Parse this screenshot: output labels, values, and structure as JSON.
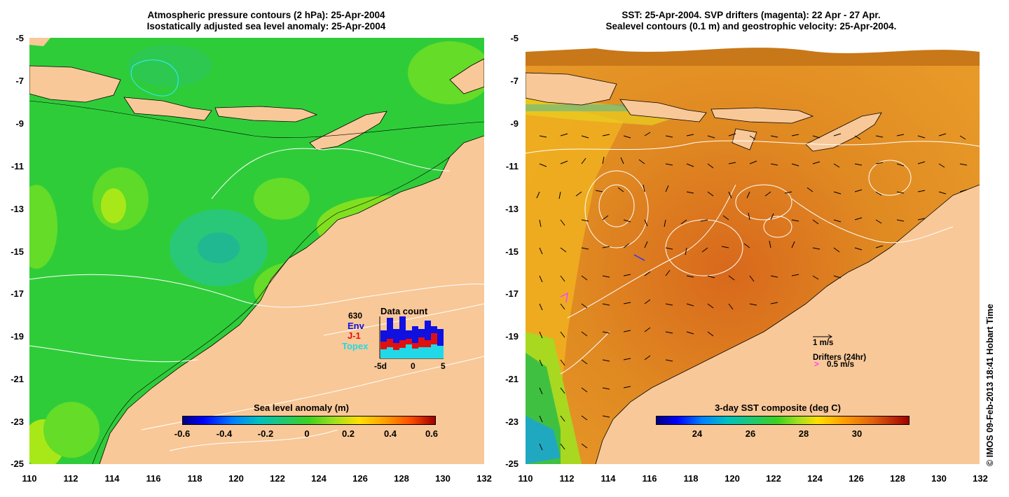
{
  "left_panel": {
    "title_line1": "Atmospheric pressure contours (2 hPa): 25-Apr-2004",
    "title_line2": "Isostatically adjusted sea level anomaly: 25-Apr-2004",
    "y_ticks": [
      "-5",
      "-7",
      "-9",
      "-11",
      "-13",
      "-15",
      "-17",
      "-19",
      "-21",
      "-23",
      "-25"
    ],
    "x_ticks": [
      "110",
      "112",
      "114",
      "116",
      "118",
      "120",
      "122",
      "124",
      "126",
      "128",
      "130",
      "132"
    ],
    "colorbar": {
      "title": "Sea level anomaly (m)",
      "labels": [
        "-0.6",
        "-0.4",
        "-0.2",
        "0",
        "0.2",
        "0.4",
        "0.6"
      ],
      "range": [
        -0.6,
        0.6
      ]
    },
    "data_count": {
      "title": "Data count",
      "total": "630",
      "legend": [
        {
          "label": "Env",
          "color": "#1010e0"
        },
        {
          "label": "J-1",
          "color": "#e01010"
        },
        {
          "label": "Topex",
          "color": "#20d8e8"
        }
      ],
      "axis_labels": [
        "-5d",
        "0",
        "5"
      ]
    }
  },
  "right_panel": {
    "title_line1": "SST: 25-Apr-2004. SVP drifters (magenta): 22 Apr - 27 Apr.",
    "title_line2": "Sealevel contours (0.1 m) and geostrophic velocity: 25-Apr-2004.",
    "y_ticks": [
      "-5",
      "-7",
      "-9",
      "-11",
      "-13",
      "-15",
      "-17",
      "-19",
      "-21",
      "-23",
      "-25"
    ],
    "x_ticks": [
      "110",
      "112",
      "114",
      "116",
      "118",
      "120",
      "122",
      "124",
      "126",
      "128",
      "130",
      "132"
    ],
    "velocity_scale": "1 m/s",
    "drifters_label": "Drifters (24hr)",
    "drifters_speed": "0.5 m/s",
    "colorbar": {
      "title": "3-day SST composite (deg C)",
      "labels": [
        "24",
        "26",
        "28",
        "30"
      ],
      "range": [
        22.5,
        31.5
      ]
    }
  },
  "credit": "© IMOS 09-Feb-2013 18:41 Hobart Time",
  "colors": {
    "land": "#f8c898",
    "ocean_green": "#30d030",
    "sst_orange": "#e08020",
    "contour": "#ffffff"
  }
}
